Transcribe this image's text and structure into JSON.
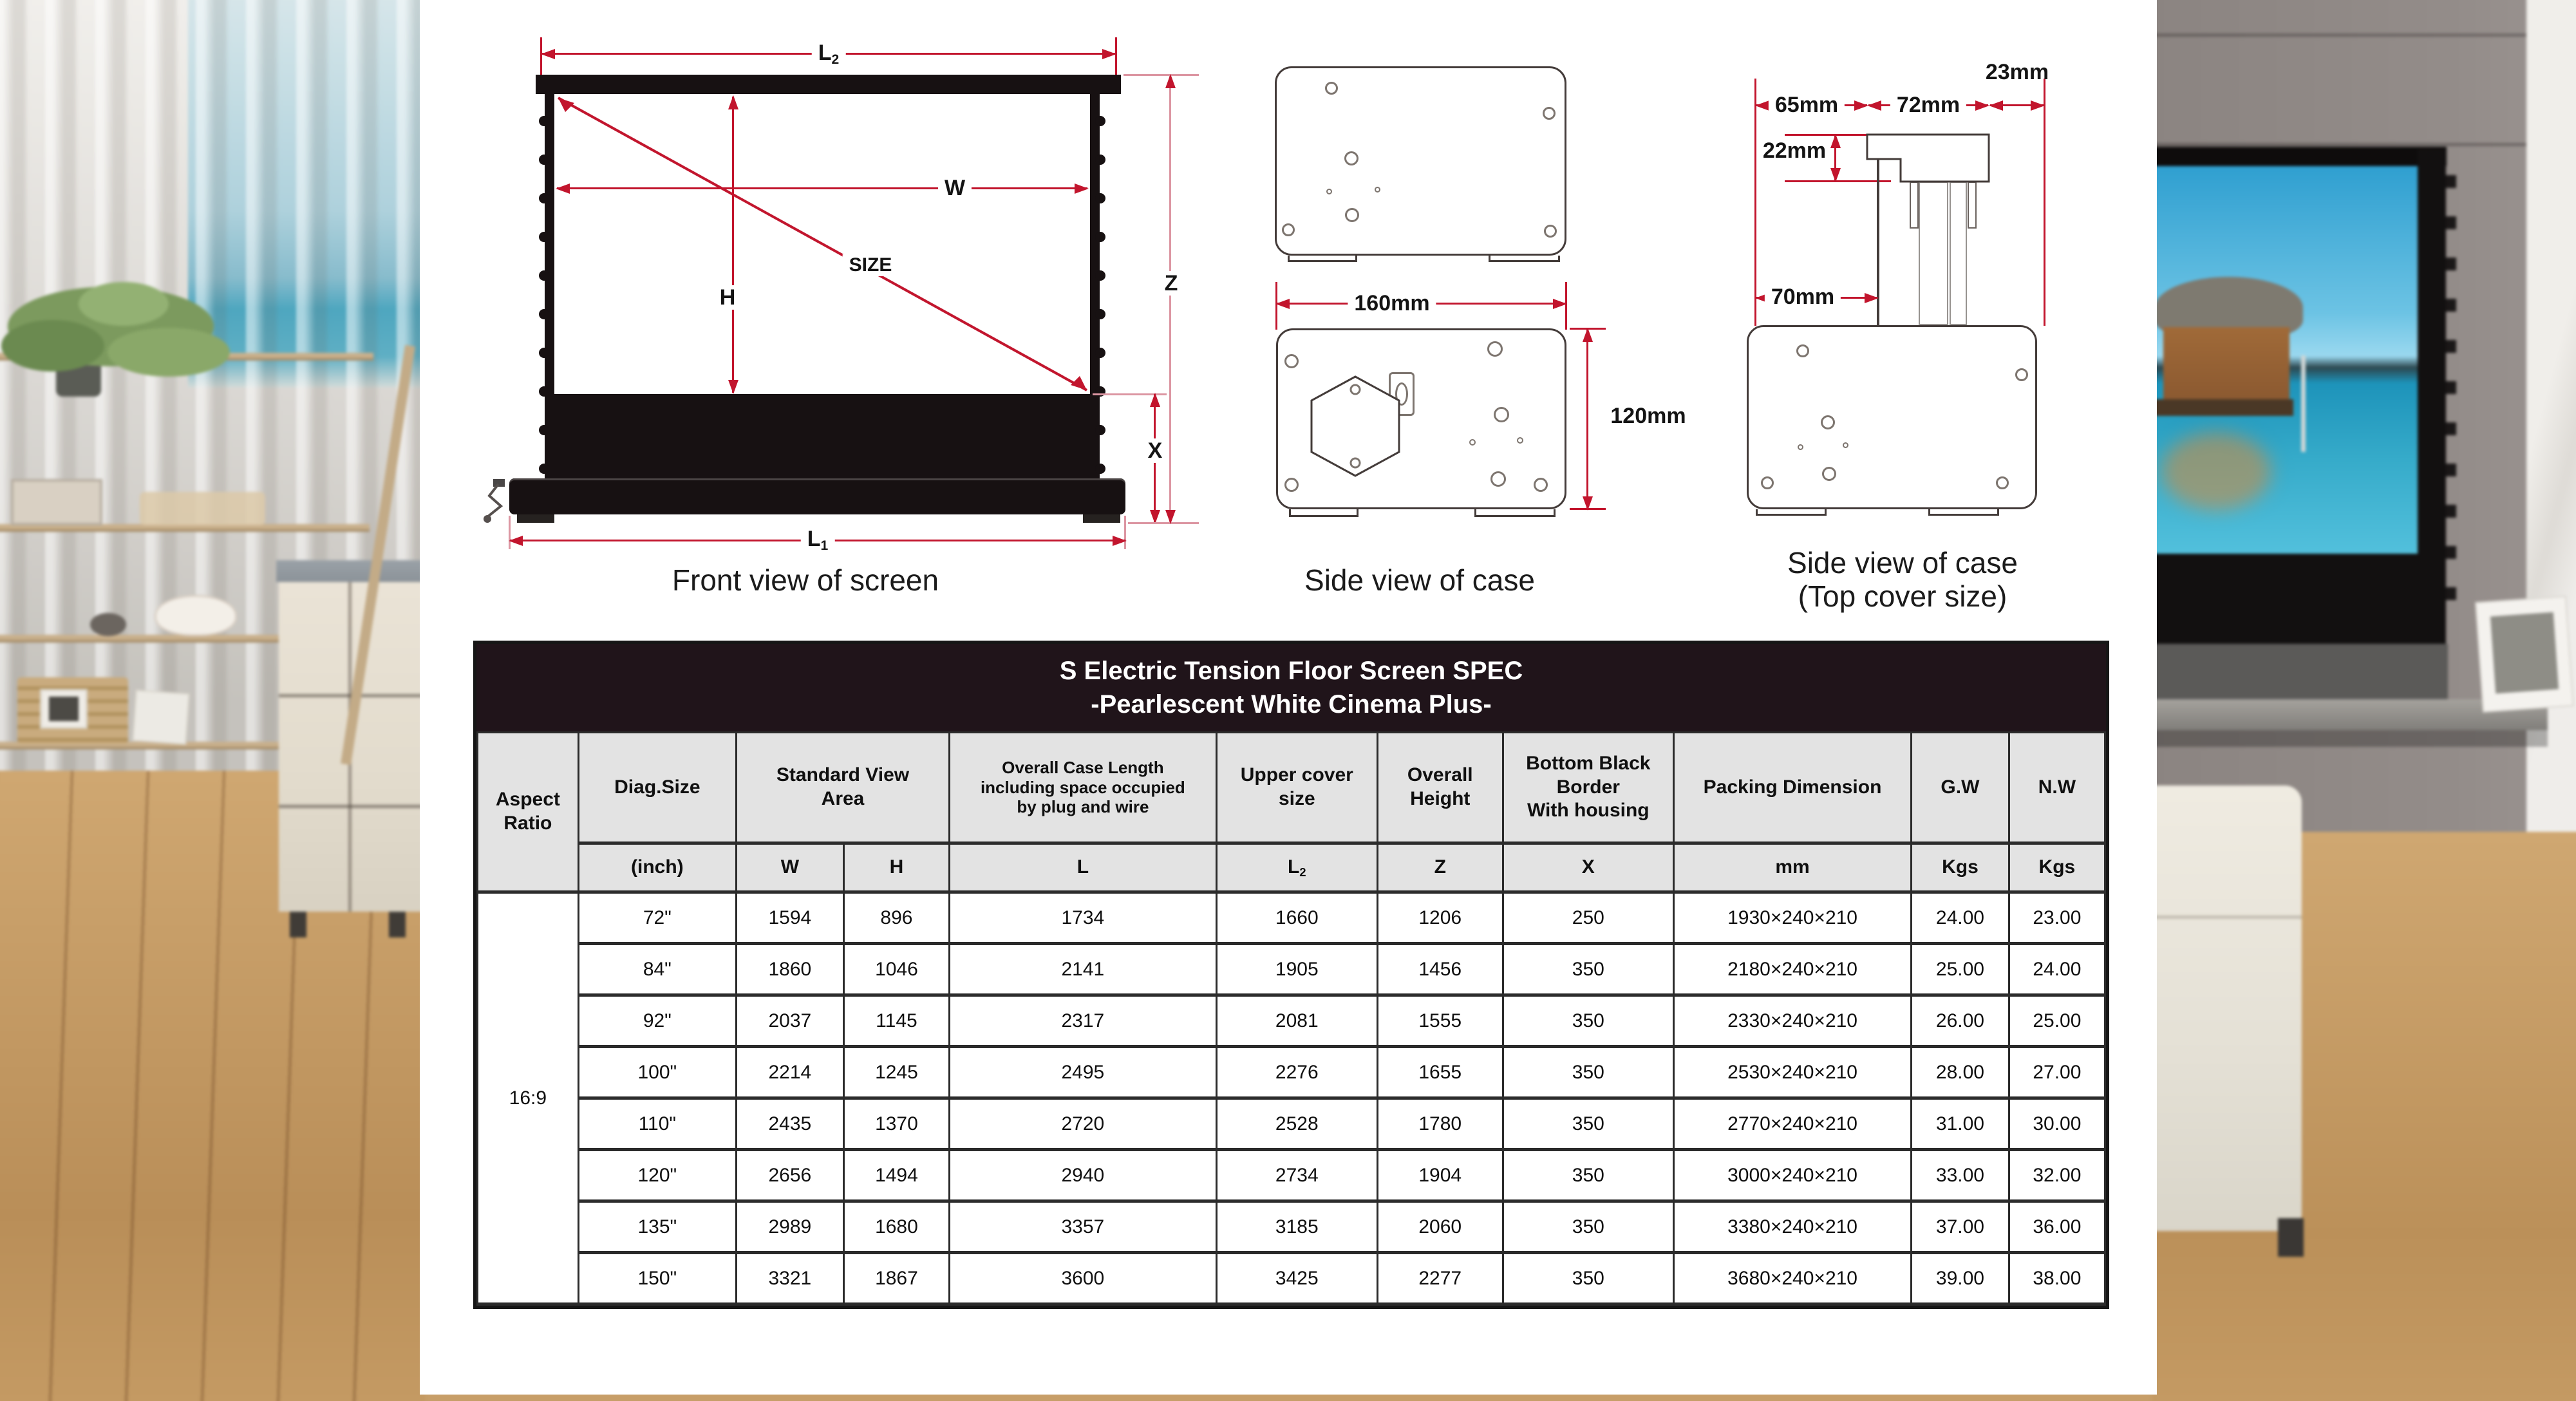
{
  "colors": {
    "accent_red": "#c2152d",
    "dim_pink": "#dc96a2",
    "diagram_ink": "#171112",
    "title_bar_bg": "#20141a",
    "header_bg": "#e3e3e3",
    "table_border": "#2b2b2b"
  },
  "diagrams": {
    "front_view": {
      "caption": "Front view of screen",
      "labels": {
        "l2_base": "L",
        "l2_sub": "2",
        "w": "W",
        "h": "H",
        "size": "SIZE",
        "z": "Z",
        "x": "X",
        "l1_base": "L",
        "l1_sub": "1"
      }
    },
    "side_case": {
      "caption": "Side view of case",
      "width_label": "160mm",
      "height_label": "120mm"
    },
    "top_cover": {
      "caption_line1": "Side view of case",
      "caption_line2": "(Top cover size)",
      "labels": {
        "d65": "65mm",
        "d72": "72mm",
        "d23": "23mm",
        "d22": "22mm",
        "d70": "70mm"
      }
    }
  },
  "table": {
    "title_line1": "S Electric Tension Floor Screen SPEC",
    "title_line2": "-Pearlescent White Cinema Plus-",
    "headers": {
      "aspect_line1": "Aspect",
      "aspect_line2": "Ratio",
      "diag_size": "Diag.Size",
      "sva_line1": "Standard View",
      "sva_line2": "Area",
      "ocl_line1": "Overall Case Length",
      "ocl_line2": "including space occupied",
      "ocl_line3": "by plug and wire",
      "ucs_line1": "Upper cover",
      "ucs_line2": "size",
      "oh_line1": "Overall",
      "oh_line2": "Height",
      "bbb_line1": "Bottom Black",
      "bbb_line2": "Border",
      "bbb_line3": "With housing",
      "packing": "Packing Dimension",
      "gw": "G.W",
      "nw": "N.W"
    },
    "subheader": [
      "(inch)",
      "W",
      "H",
      "L",
      "L",
      "Z",
      "X",
      "mm",
      "Kgs",
      "Kgs"
    ],
    "sub2": "2",
    "aspect_ratio": "16:9",
    "rows": [
      {
        "cells": [
          "72\"",
          "1594",
          "896",
          "1734",
          "1660",
          "1206",
          "250",
          "1930×240×210",
          "24.00",
          "23.00"
        ]
      },
      {
        "cells": [
          "84\"",
          "1860",
          "1046",
          "2141",
          "1905",
          "1456",
          "350",
          "2180×240×210",
          "25.00",
          "24.00"
        ]
      },
      {
        "cells": [
          "92\"",
          "2037",
          "1145",
          "2317",
          "2081",
          "1555",
          "350",
          "2330×240×210",
          "26.00",
          "25.00"
        ]
      },
      {
        "cells": [
          "100\"",
          "2214",
          "1245",
          "2495",
          "2276",
          "1655",
          "350",
          "2530×240×210",
          "28.00",
          "27.00"
        ]
      },
      {
        "cells": [
          "110\"",
          "2435",
          "1370",
          "2720",
          "2528",
          "1780",
          "350",
          "2770×240×210",
          "31.00",
          "30.00"
        ]
      },
      {
        "cells": [
          "120\"",
          "2656",
          "1494",
          "2940",
          "2734",
          "1904",
          "350",
          "3000×240×210",
          "33.00",
          "32.00"
        ]
      },
      {
        "cells": [
          "135\"",
          "2989",
          "1680",
          "3357",
          "3185",
          "2060",
          "350",
          "3380×240×210",
          "37.00",
          "36.00"
        ]
      },
      {
        "cells": [
          "150\"",
          "3321",
          "1867",
          "3600",
          "3425",
          "2277",
          "350",
          "3680×240×210",
          "39.00",
          "38.00"
        ]
      }
    ]
  }
}
